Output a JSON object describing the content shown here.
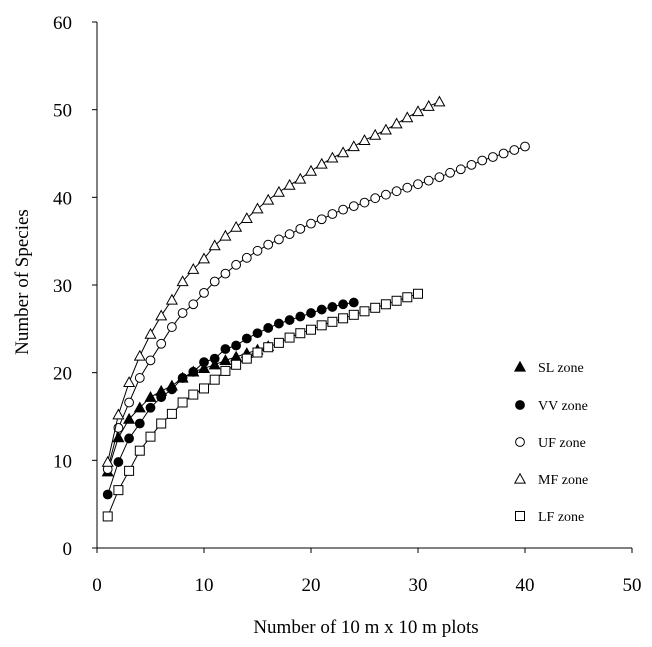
{
  "chart_data": {
    "type": "line",
    "title": "",
    "xlabel": "Number of 10 m x 10 m plots",
    "ylabel": "Number of Species",
    "xlim": [
      0,
      50
    ],
    "ylim": [
      0,
      60
    ],
    "xticks": [
      "0",
      "10",
      "20",
      "30",
      "40",
      "50"
    ],
    "yticks": [
      "0",
      "10",
      "20",
      "30",
      "40",
      "50",
      "60"
    ],
    "grid": false,
    "legend_position": "right",
    "series": [
      {
        "name": "SL zone",
        "marker": "filled-triangle",
        "x": [
          1,
          2,
          3,
          4,
          5,
          6,
          7,
          8,
          9,
          10,
          11,
          12,
          13,
          14,
          15,
          16
        ],
        "y": [
          8.7,
          12.6,
          14.7,
          16.0,
          17.2,
          17.9,
          18.5,
          19.4,
          20.1,
          20.5,
          20.9,
          21.4,
          21.8,
          22.2,
          22.6,
          23.0
        ]
      },
      {
        "name": "VV zone",
        "marker": "filled-circle",
        "x": [
          1,
          2,
          3,
          4,
          5,
          6,
          7,
          8,
          9,
          10,
          11,
          12,
          13,
          14,
          15,
          16,
          17,
          18,
          19,
          20,
          21,
          22,
          23,
          24
        ],
        "y": [
          6.1,
          9.8,
          12.5,
          14.2,
          16.0,
          17.2,
          18.1,
          19.4,
          20.1,
          21.2,
          21.6,
          22.7,
          23.1,
          23.9,
          24.5,
          25.1,
          25.6,
          26.0,
          26.4,
          26.8,
          27.2,
          27.5,
          27.8,
          28.0
        ]
      },
      {
        "name": "UF zone",
        "marker": "open-circle",
        "x": [
          1,
          2,
          3,
          4,
          5,
          6,
          7,
          8,
          9,
          10,
          11,
          12,
          13,
          14,
          15,
          16,
          17,
          18,
          19,
          20,
          21,
          22,
          23,
          24,
          25,
          26,
          27,
          28,
          29,
          30,
          31,
          32,
          33,
          34,
          35,
          36,
          37,
          38,
          39,
          40
        ],
        "y": [
          9.0,
          13.7,
          16.6,
          19.4,
          21.4,
          23.3,
          25.2,
          26.8,
          27.8,
          29.1,
          30.4,
          31.3,
          32.3,
          33.1,
          33.9,
          34.6,
          35.2,
          35.8,
          36.4,
          37.0,
          37.5,
          38.1,
          38.6,
          39.0,
          39.4,
          39.9,
          40.3,
          40.7,
          41.1,
          41.5,
          41.9,
          42.3,
          42.8,
          43.2,
          43.7,
          44.2,
          44.6,
          45.0,
          45.4,
          45.8
        ]
      },
      {
        "name": "MF zone",
        "marker": "open-triangle",
        "x": [
          1,
          2,
          3,
          4,
          5,
          6,
          7,
          8,
          9,
          10,
          11,
          12,
          13,
          14,
          15,
          16,
          17,
          18,
          19,
          20,
          21,
          22,
          23,
          24,
          25,
          26,
          27,
          28,
          29,
          30,
          31,
          32
        ],
        "y": [
          9.8,
          15.2,
          18.9,
          21.9,
          24.4,
          26.5,
          28.3,
          30.4,
          31.8,
          33.0,
          34.5,
          35.6,
          36.6,
          37.6,
          38.7,
          39.7,
          40.6,
          41.4,
          42.1,
          43.0,
          43.8,
          44.5,
          45.1,
          45.8,
          46.5,
          47.1,
          47.7,
          48.4,
          49.1,
          49.8,
          50.4,
          50.9
        ]
      },
      {
        "name": "LF zone",
        "marker": "open-square",
        "x": [
          1,
          2,
          3,
          4,
          5,
          6,
          7,
          8,
          9,
          10,
          11,
          12,
          13,
          14,
          15,
          16,
          17,
          18,
          19,
          20,
          21,
          22,
          23,
          24,
          25,
          26,
          27,
          28,
          29,
          30
        ],
        "y": [
          3.6,
          6.6,
          8.8,
          11.1,
          12.7,
          14.2,
          15.3,
          16.6,
          17.5,
          18.2,
          19.2,
          20.2,
          20.9,
          21.6,
          22.3,
          22.9,
          23.4,
          24.0,
          24.5,
          24.9,
          25.4,
          25.8,
          26.2,
          26.6,
          27.0,
          27.4,
          27.8,
          28.2,
          28.6,
          29.0
        ]
      }
    ]
  }
}
